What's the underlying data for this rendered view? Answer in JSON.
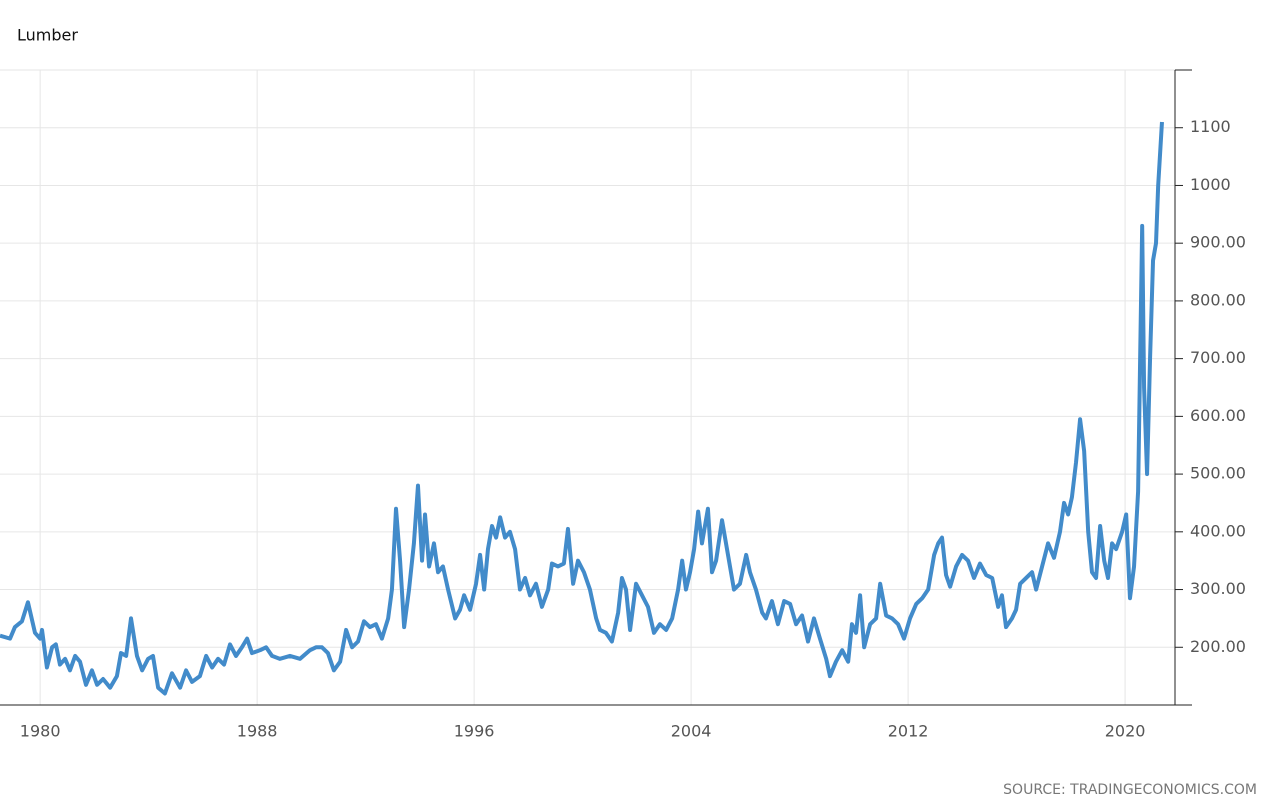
{
  "chart_data": {
    "type": "line",
    "title": "Lumber",
    "source": "SOURCE: TRADINGECONOMICS.COM",
    "color": "#428bca",
    "grid": true,
    "xlim": [
      1978.52,
      2021.84
    ],
    "xticks": [
      1980,
      1988,
      1996,
      2004,
      2012,
      2020
    ],
    "ylim": [
      100,
      1200
    ],
    "yticks": [
      {
        "value": 200,
        "label": "200.00"
      },
      {
        "value": 300,
        "label": "300.00"
      },
      {
        "value": 400,
        "label": "400.00"
      },
      {
        "value": 500,
        "label": "500.00"
      },
      {
        "value": 600,
        "label": "600.00"
      },
      {
        "value": 700,
        "label": "700.00"
      },
      {
        "value": 800,
        "label": "800.00"
      },
      {
        "value": 900,
        "label": "900.00"
      },
      1000,
      1100
    ],
    "x": [
      1978.52,
      1978.89,
      1979.07,
      1979.33,
      1979.55,
      1979.81,
      1980.0,
      1980.07,
      1980.25,
      1980.44,
      1980.58,
      1980.73,
      1980.92,
      1981.1,
      1981.29,
      1981.47,
      1981.69,
      1981.91,
      1982.1,
      1982.32,
      1982.58,
      1982.83,
      1982.98,
      1983.17,
      1983.35,
      1983.57,
      1983.76,
      1983.98,
      1984.16,
      1984.35,
      1984.6,
      1984.86,
      1985.16,
      1985.38,
      1985.6,
      1985.89,
      1986.12,
      1986.34,
      1986.56,
      1986.78,
      1987.0,
      1987.22,
      1987.44,
      1987.63,
      1987.81,
      1988.11,
      1988.33,
      1988.55,
      1988.84,
      1989.21,
      1989.58,
      1989.95,
      1990.17,
      1990.39,
      1990.61,
      1990.83,
      1991.06,
      1991.28,
      1991.5,
      1991.72,
      1991.94,
      1992.16,
      1992.38,
      1992.6,
      1992.83,
      1992.97,
      1993.12,
      1993.27,
      1993.42,
      1993.6,
      1993.78,
      1993.93,
      1994.08,
      1994.19,
      1994.34,
      1994.52,
      1994.67,
      1994.85,
      1995.04,
      1995.3,
      1995.48,
      1995.63,
      1995.85,
      1996.07,
      1996.22,
      1996.37,
      1996.51,
      1996.66,
      1996.81,
      1996.96,
      1997.14,
      1997.32,
      1997.51,
      1997.69,
      1997.88,
      1998.06,
      1998.28,
      1998.5,
      1998.73,
      1998.87,
      1999.09,
      1999.31,
      1999.46,
      1999.65,
      1999.83,
      2000.05,
      2000.27,
      2000.5,
      2000.64,
      2000.86,
      2001.08,
      2001.31,
      2001.45,
      2001.6,
      2001.75,
      2001.97,
      2002.19,
      2002.41,
      2002.63,
      2002.85,
      2003.08,
      2003.3,
      2003.52,
      2003.67,
      2003.81,
      2003.96,
      2004.11,
      2004.26,
      2004.4,
      2004.62,
      2004.77,
      2004.92,
      2005.14,
      2005.36,
      2005.58,
      2005.8,
      2006.03,
      2006.17,
      2006.39,
      2006.62,
      2006.76,
      2006.98,
      2007.2,
      2007.43,
      2007.65,
      2007.87,
      2008.09,
      2008.31,
      2008.53,
      2008.75,
      2008.98,
      2009.12,
      2009.34,
      2009.57,
      2009.79,
      2009.93,
      2010.08,
      2010.23,
      2010.38,
      2010.6,
      2010.82,
      2010.97,
      2011.19,
      2011.41,
      2011.63,
      2011.85,
      2012.07,
      2012.3,
      2012.52,
      2012.74,
      2012.96,
      2013.11,
      2013.25,
      2013.4,
      2013.55,
      2013.77,
      2013.99,
      2014.21,
      2014.43,
      2014.65,
      2014.88,
      2015.1,
      2015.32,
      2015.46,
      2015.61,
      2015.83,
      2015.98,
      2016.13,
      2016.35,
      2016.57,
      2016.72,
      2016.94,
      2017.16,
      2017.38,
      2017.6,
      2017.75,
      2017.9,
      2018.04,
      2018.19,
      2018.34,
      2018.49,
      2018.64,
      2018.78,
      2018.93,
      2019.08,
      2019.23,
      2019.37,
      2019.52,
      2019.67,
      2019.89,
      2020.04,
      2020.18,
      2020.33,
      2020.48,
      2020.63,
      2020.7,
      2020.81,
      2020.92,
      2021.03,
      2021.14,
      2021.22,
      2021.36
    ],
    "values": [
      220,
      215,
      235,
      245,
      278,
      225,
      215,
      230,
      165,
      200,
      205,
      170,
      180,
      160,
      185,
      175,
      135,
      160,
      135,
      145,
      130,
      150,
      190,
      185,
      250,
      185,
      160,
      180,
      185,
      130,
      120,
      155,
      130,
      160,
      140,
      150,
      185,
      165,
      180,
      170,
      205,
      185,
      200,
      215,
      190,
      195,
      200,
      185,
      180,
      185,
      180,
      195,
      200,
      200,
      190,
      160,
      175,
      230,
      200,
      210,
      245,
      235,
      240,
      215,
      250,
      300,
      440,
      350,
      235,
      300,
      380,
      480,
      350,
      430,
      340,
      380,
      330,
      340,
      300,
      250,
      265,
      290,
      265,
      310,
      360,
      300,
      370,
      410,
      390,
      425,
      390,
      400,
      370,
      300,
      320,
      290,
      310,
      270,
      300,
      345,
      340,
      345,
      405,
      310,
      350,
      330,
      300,
      250,
      230,
      225,
      210,
      260,
      320,
      300,
      230,
      310,
      290,
      270,
      225,
      240,
      230,
      250,
      300,
      350,
      300,
      330,
      370,
      435,
      380,
      440,
      330,
      350,
      420,
      360,
      300,
      310,
      360,
      330,
      300,
      260,
      250,
      280,
      240,
      280,
      275,
      240,
      255,
      210,
      250,
      215,
      180,
      150,
      175,
      195,
      175,
      240,
      225,
      290,
      200,
      240,
      250,
      310,
      255,
      250,
      240,
      215,
      250,
      275,
      285,
      300,
      360,
      380,
      390,
      325,
      305,
      340,
      360,
      350,
      320,
      345,
      325,
      320,
      270,
      290,
      235,
      250,
      265,
      310,
      320,
      330,
      300,
      340,
      380,
      355,
      400,
      450,
      430,
      460,
      520,
      595,
      540,
      400,
      330,
      320,
      410,
      350,
      320,
      380,
      370,
      400,
      430,
      285,
      340,
      470,
      930,
      650,
      500,
      700,
      870,
      900,
      1000,
      1110
    ]
  }
}
